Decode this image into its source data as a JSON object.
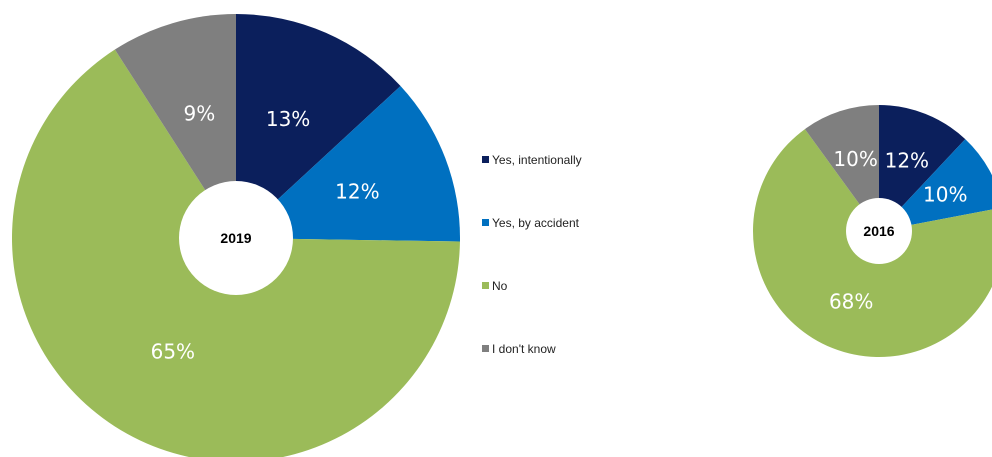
{
  "chart_data": {
    "type": "pie",
    "legend_placement": "center",
    "categories": [
      "Yes, intentionally",
      "Yes, by accident",
      "No",
      "I don't know"
    ],
    "colors": [
      "#0b1f5c",
      "#0070c0",
      "#9bbb59",
      "#7f7f7f"
    ],
    "pies": [
      {
        "year_label": "2019",
        "values": [
          13,
          12,
          65,
          9
        ],
        "labels": [
          "13%",
          "12%",
          "65%",
          "9%"
        ]
      },
      {
        "year_label": "2016",
        "values": [
          12,
          10,
          68,
          10
        ],
        "labels": [
          "12%",
          "10%",
          "68%",
          "10%"
        ]
      }
    ]
  }
}
